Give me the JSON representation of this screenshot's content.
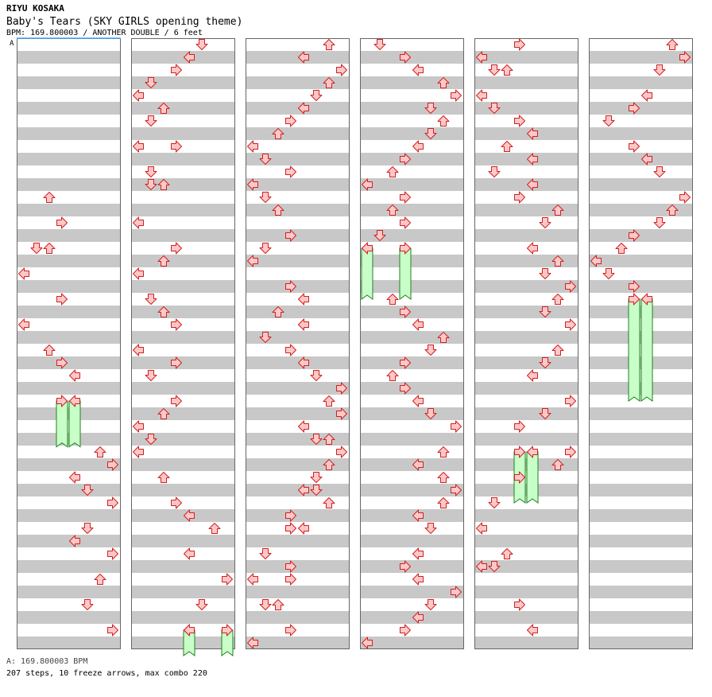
{
  "header": {
    "artist": "RIYU KOSAKA",
    "title": "Baby's Tears (SKY GIRLS opening theme)",
    "meta": "BPM: 169.800003 / ANOTHER DOUBLE / 6 feet",
    "bpm_marker": "A"
  },
  "footer": {
    "bpm_line": "A: 169.800003 BPM",
    "stats_line": "207 steps, 10 freeze arrows, max combo 220"
  },
  "colors": {
    "stripe": "#c8c8c8",
    "note_red_fill": "#ffc8c8",
    "note_red_stroke": "#d02020",
    "note_blue_fill": "#8cc8ff",
    "note_blue_stroke": "#2060c0",
    "freeze_fill": "#c8ffc8",
    "freeze_stroke": "#208020"
  },
  "chart_data": {
    "type": "step-chart",
    "columns": 6,
    "measures_per_column": 12,
    "lanes": 8,
    "note_directions": [
      "L",
      "D",
      "U",
      "R",
      "L",
      "D",
      "U",
      "R"
    ],
    "notes": [
      [
        0,
        3,
        0,
        2
      ],
      [
        0,
        3,
        2,
        3
      ],
      [
        0,
        4,
        0,
        2
      ],
      [
        0,
        4,
        0,
        1
      ],
      [
        0,
        4,
        2,
        0
      ],
      [
        0,
        5,
        0,
        3
      ],
      [
        0,
        5,
        2,
        0
      ],
      [
        0,
        6,
        0,
        2
      ],
      [
        0,
        6,
        1,
        3
      ],
      [
        0,
        6,
        2,
        4
      ],
      [
        0,
        8,
        0,
        6
      ],
      [
        0,
        8,
        1,
        7
      ],
      [
        0,
        8,
        2,
        4
      ],
      [
        0,
        8,
        3,
        5
      ],
      [
        0,
        9,
        0,
        7
      ],
      [
        0,
        9,
        2,
        5
      ],
      [
        0,
        9,
        3,
        4
      ],
      [
        0,
        10,
        0,
        7
      ],
      [
        0,
        10,
        2,
        6
      ],
      [
        0,
        11,
        0,
        5
      ],
      [
        0,
        11,
        2,
        7
      ],
      [
        1,
        0,
        0,
        5
      ],
      [
        1,
        0,
        1,
        4
      ],
      [
        1,
        0,
        2,
        3
      ],
      [
        1,
        0,
        3,
        1
      ],
      [
        1,
        1,
        0,
        0
      ],
      [
        1,
        1,
        1,
        2
      ],
      [
        1,
        1,
        2,
        1
      ],
      [
        1,
        2,
        0,
        0
      ],
      [
        1,
        2,
        0,
        3
      ],
      [
        1,
        2,
        2,
        1
      ],
      [
        1,
        2,
        3,
        2
      ],
      [
        1,
        2,
        3,
        1
      ],
      [
        1,
        3,
        2,
        0
      ],
      [
        1,
        4,
        0,
        3
      ],
      [
        1,
        4,
        1,
        2
      ],
      [
        1,
        4,
        2,
        0
      ],
      [
        1,
        5,
        0,
        1
      ],
      [
        1,
        5,
        1,
        2
      ],
      [
        1,
        5,
        2,
        3
      ],
      [
        1,
        6,
        0,
        0
      ],
      [
        1,
        6,
        1,
        3
      ],
      [
        1,
        6,
        2,
        1
      ],
      [
        1,
        7,
        0,
        3
      ],
      [
        1,
        7,
        1,
        2
      ],
      [
        1,
        7,
        2,
        0
      ],
      [
        1,
        7,
        3,
        1
      ],
      [
        1,
        8,
        0,
        0
      ],
      [
        1,
        8,
        2,
        2
      ],
      [
        1,
        9,
        0,
        3
      ],
      [
        1,
        9,
        1,
        4
      ],
      [
        1,
        9,
        2,
        6
      ],
      [
        1,
        10,
        0,
        4
      ],
      [
        1,
        10,
        2,
        7
      ],
      [
        1,
        11,
        0,
        5
      ],
      [
        1,
        11,
        2,
        4
      ],
      [
        2,
        0,
        0,
        6
      ],
      [
        2,
        0,
        1,
        4
      ],
      [
        2,
        0,
        2,
        7
      ],
      [
        2,
        0,
        3,
        6
      ],
      [
        2,
        1,
        0,
        5
      ],
      [
        2,
        1,
        1,
        4
      ],
      [
        2,
        1,
        2,
        3
      ],
      [
        2,
        1,
        3,
        2
      ],
      [
        2,
        2,
        0,
        0
      ],
      [
        2,
        2,
        1,
        1
      ],
      [
        2,
        2,
        2,
        3
      ],
      [
        2,
        2,
        3,
        0
      ],
      [
        2,
        3,
        0,
        1
      ],
      [
        2,
        3,
        1,
        2
      ],
      [
        2,
        3,
        3,
        3
      ],
      [
        2,
        4,
        0,
        1
      ],
      [
        2,
        4,
        1,
        0
      ],
      [
        2,
        4,
        3,
        3
      ],
      [
        2,
        5,
        0,
        4
      ],
      [
        2,
        5,
        1,
        2
      ],
      [
        2,
        5,
        2,
        4
      ],
      [
        2,
        5,
        3,
        1
      ],
      [
        2,
        6,
        0,
        3
      ],
      [
        2,
        6,
        1,
        4
      ],
      [
        2,
        6,
        2,
        5
      ],
      [
        2,
        6,
        3,
        7
      ],
      [
        2,
        7,
        0,
        6
      ],
      [
        2,
        7,
        1,
        7
      ],
      [
        2,
        7,
        2,
        4
      ],
      [
        2,
        7,
        3,
        5
      ],
      [
        2,
        7,
        3,
        6
      ],
      [
        2,
        8,
        0,
        7
      ],
      [
        2,
        8,
        1,
        6
      ],
      [
        2,
        8,
        2,
        5
      ],
      [
        2,
        8,
        3,
        4
      ],
      [
        2,
        8,
        3,
        5
      ],
      [
        2,
        9,
        0,
        6
      ],
      [
        2,
        9,
        1,
        3
      ],
      [
        2,
        9,
        2,
        4
      ],
      [
        2,
        9,
        2,
        3
      ],
      [
        2,
        10,
        0,
        1
      ],
      [
        2,
        10,
        1,
        3
      ],
      [
        2,
        10,
        2,
        0
      ],
      [
        2,
        10,
        2,
        3
      ],
      [
        2,
        11,
        0,
        1
      ],
      [
        2,
        11,
        0,
        2
      ],
      [
        2,
        11,
        2,
        3
      ],
      [
        2,
        11,
        3,
        0
      ],
      [
        3,
        0,
        0,
        1
      ],
      [
        3,
        0,
        1,
        3
      ],
      [
        3,
        0,
        2,
        4
      ],
      [
        3,
        0,
        3,
        6
      ],
      [
        3,
        1,
        0,
        7
      ],
      [
        3,
        1,
        1,
        5
      ],
      [
        3,
        1,
        2,
        6
      ],
      [
        3,
        1,
        3,
        5
      ],
      [
        3,
        2,
        0,
        4
      ],
      [
        3,
        2,
        1,
        3
      ],
      [
        3,
        2,
        2,
        2
      ],
      [
        3,
        2,
        3,
        0
      ],
      [
        3,
        3,
        0,
        3
      ],
      [
        3,
        3,
        1,
        2
      ],
      [
        3,
        3,
        2,
        3
      ],
      [
        3,
        3,
        3,
        1
      ],
      [
        3,
        5,
        0,
        2
      ],
      [
        3,
        5,
        1,
        3
      ],
      [
        3,
        5,
        2,
        4
      ],
      [
        3,
        5,
        3,
        6
      ],
      [
        3,
        6,
        0,
        5
      ],
      [
        3,
        6,
        1,
        3
      ],
      [
        3,
        6,
        2,
        2
      ],
      [
        3,
        6,
        3,
        3
      ],
      [
        3,
        7,
        0,
        4
      ],
      [
        3,
        7,
        1,
        5
      ],
      [
        3,
        7,
        2,
        7
      ],
      [
        3,
        8,
        0,
        6
      ],
      [
        3,
        8,
        1,
        4
      ],
      [
        3,
        8,
        2,
        6
      ],
      [
        3,
        8,
        3,
        7
      ],
      [
        3,
        9,
        0,
        6
      ],
      [
        3,
        9,
        1,
        4
      ],
      [
        3,
        9,
        2,
        5
      ],
      [
        3,
        10,
        0,
        4
      ],
      [
        3,
        10,
        1,
        3
      ],
      [
        3,
        10,
        2,
        4
      ],
      [
        3,
        10,
        3,
        7
      ],
      [
        3,
        11,
        0,
        5
      ],
      [
        3,
        11,
        1,
        4
      ],
      [
        3,
        11,
        2,
        3
      ],
      [
        3,
        11,
        3,
        0
      ],
      [
        4,
        0,
        0,
        3
      ],
      [
        4,
        0,
        1,
        0
      ],
      [
        4,
        0,
        2,
        1
      ],
      [
        4,
        0,
        2,
        2
      ],
      [
        4,
        1,
        0,
        0
      ],
      [
        4,
        1,
        1,
        1
      ],
      [
        4,
        1,
        2,
        3
      ],
      [
        4,
        1,
        3,
        4
      ],
      [
        4,
        2,
        0,
        2
      ],
      [
        4,
        2,
        1,
        4
      ],
      [
        4,
        2,
        2,
        1
      ],
      [
        4,
        2,
        3,
        4
      ],
      [
        4,
        3,
        0,
        3
      ],
      [
        4,
        3,
        1,
        6
      ],
      [
        4,
        3,
        2,
        5
      ],
      [
        4,
        4,
        0,
        4
      ],
      [
        4,
        4,
        1,
        6
      ],
      [
        4,
        4,
        2,
        5
      ],
      [
        4,
        4,
        3,
        7
      ],
      [
        4,
        5,
        0,
        6
      ],
      [
        4,
        5,
        1,
        5
      ],
      [
        4,
        5,
        2,
        7
      ],
      [
        4,
        6,
        0,
        6
      ],
      [
        4,
        6,
        1,
        5
      ],
      [
        4,
        6,
        2,
        4
      ],
      [
        4,
        7,
        0,
        7
      ],
      [
        4,
        7,
        1,
        5
      ],
      [
        4,
        7,
        2,
        3
      ],
      [
        4,
        8,
        0,
        7
      ],
      [
        4,
        8,
        1,
        6
      ],
      [
        4,
        8,
        2,
        3
      ],
      [
        4,
        9,
        0,
        1
      ],
      [
        4,
        9,
        2,
        0
      ],
      [
        4,
        10,
        0,
        2
      ],
      [
        4,
        10,
        1,
        0
      ],
      [
        4,
        10,
        1,
        1
      ],
      [
        4,
        11,
        0,
        3
      ],
      [
        4,
        11,
        2,
        4
      ],
      [
        5,
        0,
        0,
        6
      ],
      [
        5,
        0,
        1,
        7
      ],
      [
        5,
        0,
        2,
        5
      ],
      [
        5,
        1,
        0,
        4
      ],
      [
        5,
        1,
        1,
        3
      ],
      [
        5,
        1,
        2,
        1
      ],
      [
        5,
        2,
        0,
        3
      ],
      [
        5,
        2,
        1,
        4
      ],
      [
        5,
        2,
        2,
        5
      ],
      [
        5,
        3,
        0,
        7
      ],
      [
        5,
        3,
        1,
        6
      ],
      [
        5,
        3,
        2,
        5
      ],
      [
        5,
        3,
        3,
        3
      ],
      [
        5,
        4,
        0,
        2
      ],
      [
        5,
        4,
        1,
        0
      ],
      [
        5,
        4,
        2,
        1
      ],
      [
        5,
        4,
        3,
        3
      ]
    ],
    "freeze_arrows": [
      [
        0,
        7,
        0,
        3,
        0.9
      ],
      [
        0,
        7,
        0,
        4,
        0.9
      ],
      [
        1,
        11,
        2,
        4,
        0.5
      ],
      [
        1,
        11,
        2,
        7,
        0.5
      ],
      [
        3,
        4,
        0,
        0,
        1.0
      ],
      [
        3,
        4,
        0,
        3,
        1.0
      ],
      [
        4,
        8,
        0,
        3,
        1.0
      ],
      [
        4,
        8,
        0,
        4,
        1.0
      ],
      [
        5,
        5,
        0,
        3,
        2.0
      ],
      [
        5,
        5,
        0,
        4,
        2.0
      ]
    ]
  }
}
